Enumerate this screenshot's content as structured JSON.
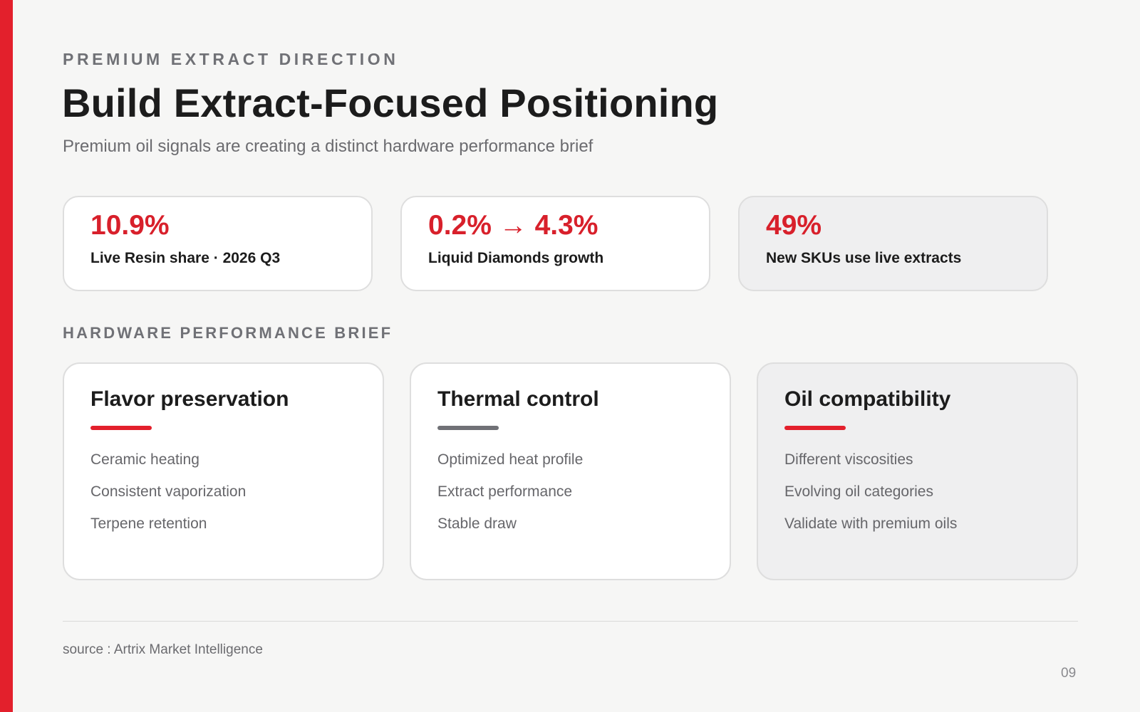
{
  "header": {
    "eyebrow": "PREMIUM EXTRACT DIRECTION",
    "title": "Build Extract-Focused Positioning",
    "subtitle": "Premium oil signals are creating a distinct hardware performance brief"
  },
  "stats": [
    {
      "value": "10.9%",
      "label": "Live Resin share · 2026 Q3"
    },
    {
      "value": "0.2% → 4.3%",
      "label": "Liquid Diamonds growth"
    },
    {
      "value": "49%",
      "label": "New SKUs use live extracts"
    }
  ],
  "brief": {
    "section_label": "HARDWARE PERFORMANCE BRIEF",
    "cards": [
      {
        "title": "Flavor preservation",
        "items": [
          "Ceramic heating",
          "Consistent vaporization",
          "Terpene retention"
        ]
      },
      {
        "title": "Thermal control",
        "items": [
          "Optimized heat profile",
          "Extract performance",
          "Stable draw"
        ]
      },
      {
        "title": "Oil compatibility",
        "items": [
          "Different viscosities",
          "Evolving oil categories",
          "Validate with premium oils"
        ]
      }
    ]
  },
  "footer": {
    "source": "source : Artrix Market Intelligence",
    "page_number": "09"
  },
  "colors": {
    "accent": "#e3202c",
    "stat_value": "#d8202b",
    "muted_rule": "#707176",
    "background": "#f6f6f5",
    "shaded_card": "#efeff0"
  }
}
